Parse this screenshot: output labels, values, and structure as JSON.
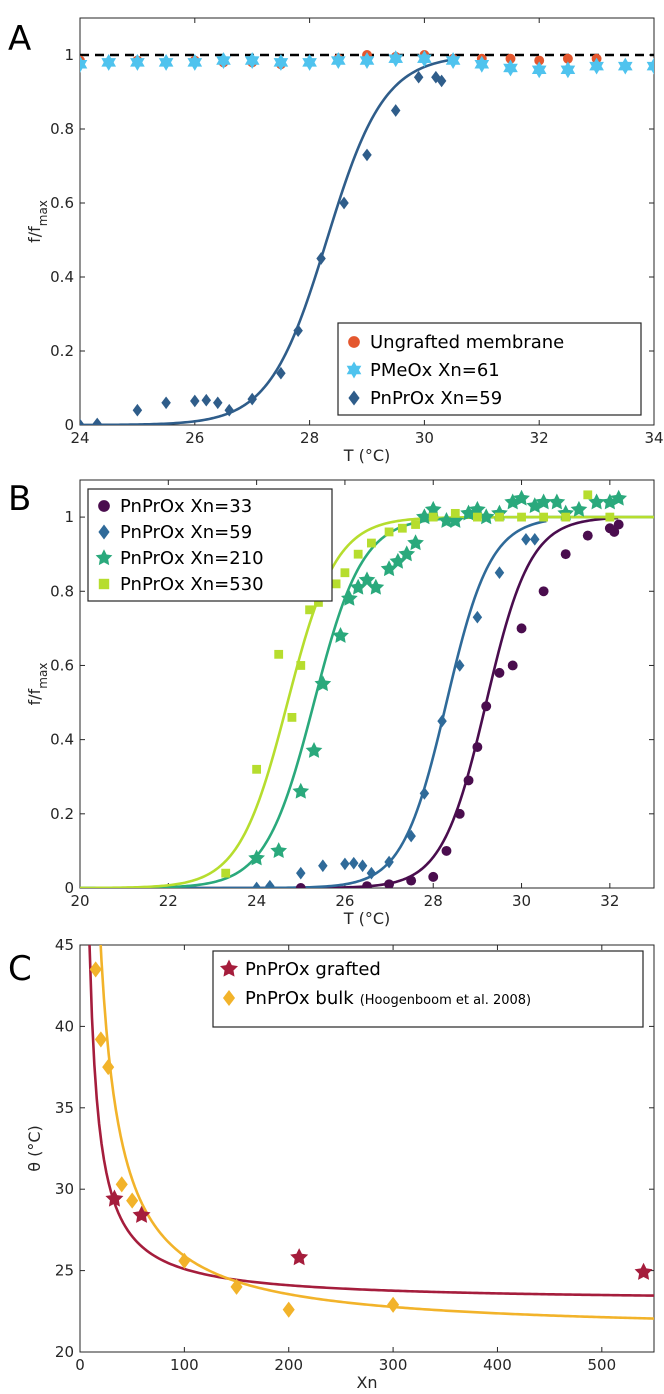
{
  "chart_data": [
    {
      "panel": "A",
      "type": "scatter",
      "xlabel": "T (°C)",
      "ylabel": "f/f",
      "ylabel_sub": "max",
      "xlim": [
        24,
        34
      ],
      "ylim": [
        0,
        1.1
      ],
      "xticks": [
        24,
        26,
        28,
        30,
        32,
        34
      ],
      "yticks": [
        0,
        0.2,
        0.4,
        0.6,
        0.8,
        1
      ],
      "reference_line_y": 1,
      "legend_position": "bottom-right",
      "colors": {
        "ungrafted": "#e4572e",
        "pmeox": "#4fc3ee",
        "pnprox": "#2f5d8a",
        "ref": "#000000"
      },
      "series": [
        {
          "name": "Ungrafted membrane",
          "marker": "circle",
          "color": "#e4572e",
          "points": [
            [
              24,
              0.985
            ],
            [
              24.5,
              0.98
            ],
            [
              25,
              0.985
            ],
            [
              25.5,
              0.98
            ],
            [
              26,
              0.985
            ],
            [
              26.5,
              0.98
            ],
            [
              27,
              0.98
            ],
            [
              27.5,
              0.975
            ],
            [
              28,
              0.98
            ],
            [
              28.5,
              0.99
            ],
            [
              29,
              1.0
            ],
            [
              29.5,
              0.995
            ],
            [
              30,
              1.0
            ],
            [
              30.5,
              0.99
            ],
            [
              31,
              0.99
            ],
            [
              31.5,
              0.99
            ],
            [
              32,
              0.985
            ],
            [
              32.5,
              0.99
            ],
            [
              33,
              0.99
            ]
          ]
        },
        {
          "name": "PMeOx Xn=61",
          "marker": "star",
          "color": "#4fc3ee",
          "points": [
            [
              24,
              0.975
            ],
            [
              24.5,
              0.98
            ],
            [
              25,
              0.98
            ],
            [
              25.5,
              0.98
            ],
            [
              26,
              0.98
            ],
            [
              26.5,
              0.985
            ],
            [
              27,
              0.985
            ],
            [
              27.5,
              0.98
            ],
            [
              28,
              0.98
            ],
            [
              28.5,
              0.985
            ],
            [
              29,
              0.985
            ],
            [
              29.5,
              0.99
            ],
            [
              30,
              0.99
            ],
            [
              30.5,
              0.985
            ],
            [
              31,
              0.975
            ],
            [
              31.5,
              0.965
            ],
            [
              32,
              0.96
            ],
            [
              32.5,
              0.96
            ],
            [
              33,
              0.97
            ],
            [
              33.5,
              0.97
            ],
            [
              34,
              0.97
            ]
          ]
        },
        {
          "name": "PnPrOx Xn=59",
          "marker": "diamond",
          "color": "#2f5d8a",
          "points": [
            [
              24,
              0
            ],
            [
              24.3,
              0.003
            ],
            [
              25,
              0.04
            ],
            [
              25.5,
              0.06
            ],
            [
              26,
              0.065
            ],
            [
              26.2,
              0.067
            ],
            [
              26.4,
              0.06
            ],
            [
              26.6,
              0.04
            ],
            [
              27,
              0.07
            ],
            [
              27.5,
              0.14
            ],
            [
              27.8,
              0.255
            ],
            [
              28.2,
              0.45
            ],
            [
              28.6,
              0.6
            ],
            [
              29,
              0.73
            ],
            [
              29.5,
              0.85
            ],
            [
              29.9,
              0.94
            ],
            [
              30.2,
              0.94
            ],
            [
              30.3,
              0.93
            ]
          ],
          "fit": {
            "midpoint": 28.3,
            "width": 0.5
          }
        }
      ]
    },
    {
      "panel": "B",
      "type": "scatter",
      "xlabel": "T (°C)",
      "ylabel": "f/f",
      "ylabel_sub": "max",
      "xlim": [
        20,
        33
      ],
      "ylim": [
        0,
        1.1
      ],
      "xticks": [
        20,
        22,
        24,
        26,
        28,
        30,
        32
      ],
      "yticks": [
        0,
        0.2,
        0.4,
        0.6,
        0.8,
        1
      ],
      "legend_position": "top-left",
      "series": [
        {
          "name": "PnPrOx Xn=33",
          "marker": "circle",
          "color": "#4a0d4e",
          "points": [
            [
              25,
              0
            ],
            [
              26.5,
              0.005
            ],
            [
              27,
              0.01
            ],
            [
              27.5,
              0.02
            ],
            [
              28,
              0.03
            ],
            [
              28.3,
              0.1
            ],
            [
              28.6,
              0.2
            ],
            [
              28.8,
              0.29
            ],
            [
              29,
              0.38
            ],
            [
              29.2,
              0.49
            ],
            [
              29.5,
              0.58
            ],
            [
              29.8,
              0.6
            ],
            [
              30,
              0.7
            ],
            [
              30.5,
              0.8
            ],
            [
              31,
              0.9
            ],
            [
              31.5,
              0.95
            ],
            [
              32,
              0.97
            ],
            [
              32.1,
              0.96
            ],
            [
              32.2,
              0.98
            ]
          ],
          "fit": {
            "midpoint": 29.2,
            "width": 0.5
          }
        },
        {
          "name": "PnPrOx Xn=59",
          "marker": "diamond",
          "color": "#2f6a99",
          "points": [
            [
              24,
              0
            ],
            [
              24.3,
              0.005
            ],
            [
              25,
              0.04
            ],
            [
              25.5,
              0.06
            ],
            [
              26,
              0.065
            ],
            [
              26.2,
              0.067
            ],
            [
              26.4,
              0.06
            ],
            [
              26.6,
              0.04
            ],
            [
              27,
              0.07
            ],
            [
              27.5,
              0.14
            ],
            [
              27.8,
              0.255
            ],
            [
              28.2,
              0.45
            ],
            [
              28.6,
              0.6
            ],
            [
              29,
              0.73
            ],
            [
              29.5,
              0.85
            ],
            [
              30.1,
              0.94
            ],
            [
              30.3,
              0.94
            ]
          ],
          "fit": {
            "midpoint": 28.3,
            "width": 0.5
          }
        },
        {
          "name": "PnPrOx Xn=210",
          "marker": "star",
          "color": "#2aa97c",
          "points": [
            [
              24,
              0.08
            ],
            [
              24.5,
              0.1
            ],
            [
              25,
              0.26
            ],
            [
              25.3,
              0.37
            ],
            [
              25.5,
              0.55
            ],
            [
              25.9,
              0.68
            ],
            [
              26.1,
              0.78
            ],
            [
              26.3,
              0.81
            ],
            [
              26.5,
              0.83
            ],
            [
              26.7,
              0.81
            ],
            [
              27,
              0.86
            ],
            [
              27.2,
              0.88
            ],
            [
              27.4,
              0.9
            ],
            [
              27.6,
              0.93
            ],
            [
              27.8,
              1.0
            ],
            [
              28,
              1.02
            ],
            [
              28.3,
              0.99
            ],
            [
              28.5,
              0.99
            ],
            [
              28.8,
              1.01
            ],
            [
              29,
              1.02
            ],
            [
              29.2,
              1.0
            ],
            [
              29.5,
              1.01
            ],
            [
              29.8,
              1.04
            ],
            [
              30,
              1.05
            ],
            [
              30.3,
              1.03
            ],
            [
              30.5,
              1.04
            ],
            [
              30.8,
              1.04
            ],
            [
              31,
              1.01
            ],
            [
              31.3,
              1.02
            ],
            [
              31.7,
              1.04
            ],
            [
              32,
              1.04
            ],
            [
              32.2,
              1.05
            ]
          ],
          "fit": {
            "midpoint": 25.3,
            "width": 0.55
          }
        },
        {
          "name": "PnPrOx Xn=530",
          "marker": "square",
          "color": "#b6dd2e",
          "points": [
            [
              23.3,
              0.04
            ],
            [
              24,
              0.32
            ],
            [
              24.5,
              0.63
            ],
            [
              24.8,
              0.46
            ],
            [
              25,
              0.6
            ],
            [
              25.2,
              0.75
            ],
            [
              25.4,
              0.77
            ],
            [
              25.6,
              0.8
            ],
            [
              25.8,
              0.82
            ],
            [
              26,
              0.85
            ],
            [
              26.3,
              0.9
            ],
            [
              26.6,
              0.93
            ],
            [
              27,
              0.96
            ],
            [
              27.3,
              0.97
            ],
            [
              27.6,
              0.98
            ],
            [
              28,
              1.0
            ],
            [
              28.5,
              1.01
            ],
            [
              29,
              1.0
            ],
            [
              29.5,
              1.0
            ],
            [
              30,
              1.0
            ],
            [
              30.5,
              1.0
            ],
            [
              31,
              1.0
            ],
            [
              31.5,
              1.06
            ],
            [
              32,
              1.0
            ]
          ],
          "fit": {
            "midpoint": 24.7,
            "width": 0.55
          }
        }
      ]
    },
    {
      "panel": "C",
      "type": "scatter",
      "xlabel": "Xn",
      "ylabel": "θ (°C)",
      "xlim": [
        0,
        550
      ],
      "ylim": [
        20,
        45
      ],
      "xticks": [
        0,
        100,
        200,
        300,
        400,
        500
      ],
      "yticks": [
        20,
        25,
        30,
        35,
        40,
        45
      ],
      "legend_position": "top-right",
      "series": [
        {
          "name": "PnPrOx grafted",
          "marker": "star",
          "color": "#a51d3c",
          "points": [
            [
              33,
              29.4
            ],
            [
              59,
              28.4
            ],
            [
              210,
              25.8
            ],
            [
              540,
              24.9
            ]
          ],
          "fit": {
            "a": 23.1,
            "b": 200
          }
        },
        {
          "name": "PnPrOx bulk",
          "name_note": "(Hoogenboom et al. 2008)",
          "marker": "diamond",
          "color": "#f2b32a",
          "points": [
            [
              15,
              43.5
            ],
            [
              20,
              39.2
            ],
            [
              27,
              37.5
            ],
            [
              40,
              30.3
            ],
            [
              50,
              29.3
            ],
            [
              100,
              25.6
            ],
            [
              150,
              24.0
            ],
            [
              200,
              22.6
            ],
            [
              300,
              22.9
            ]
          ],
          "fit": {
            "a": 21.2,
            "b": 470
          }
        }
      ]
    }
  ]
}
